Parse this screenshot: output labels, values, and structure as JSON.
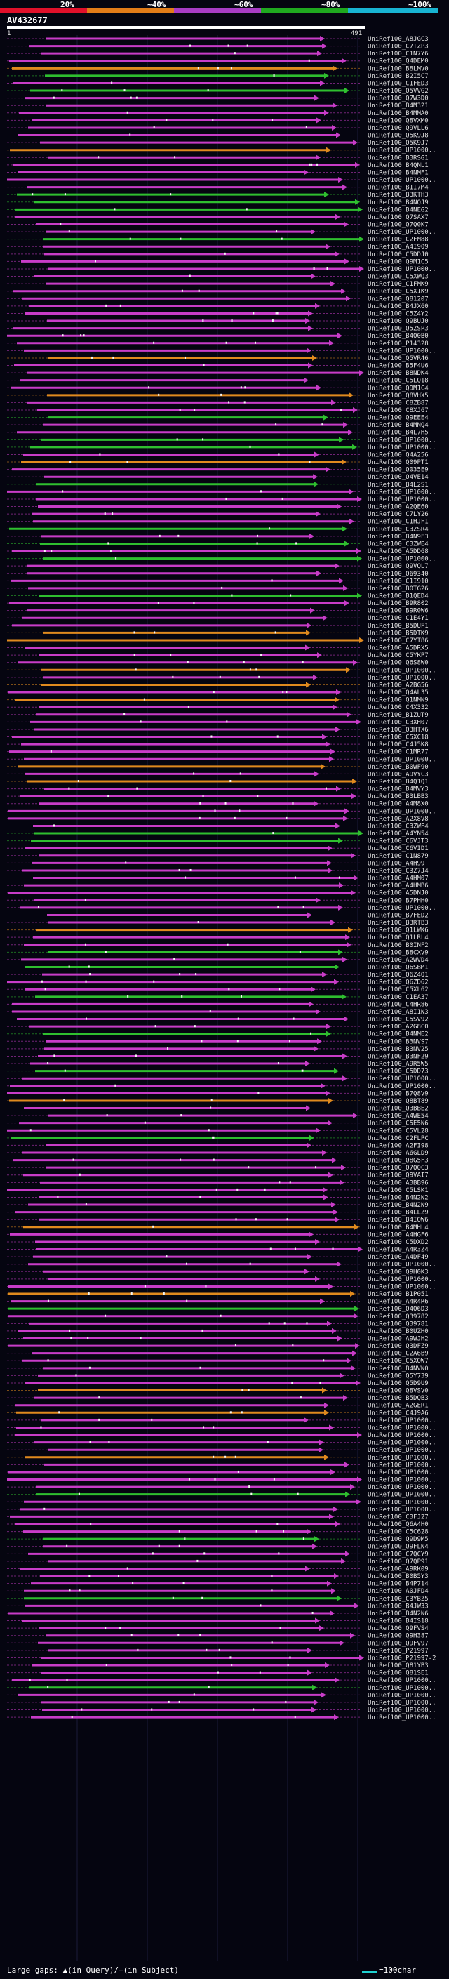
{
  "legend": [
    {
      "label": "20%",
      "color": "#e0102a"
    },
    {
      "label": "~40%",
      "color": "#e27c18"
    },
    {
      "label": "~60%",
      "color": "#a83cc4"
    },
    {
      "label": "~80%",
      "color": "#1fa81f"
    },
    {
      "label": "~100%",
      "color": "#18b4d2"
    }
  ],
  "query": {
    "name": "AV432677",
    "start": "1",
    "end": "491"
  },
  "colors": {
    "magenta": "#c83cc8",
    "green": "#2fbf2f",
    "orange": "#e08a1e",
    "tick": "#f5f5f5",
    "grid": "#1b1b3a"
  },
  "hits": [
    "UniRef100_A8JGC3",
    "UniRef100_C7TZP3",
    "UniRef100_C1N7Y6",
    "UniRef100_Q4DEM0",
    "UniRef100_B8LMV0",
    "UniRef100_B2I5C7",
    "UniRef100_C1FED3",
    "UniRef100_Q5VVG2",
    "UniRef100_Q7W3D0",
    "UniRef100_B4M321",
    "UniRef100_B4MMA0",
    "UniRef100_Q8VXM0",
    "UniRef100_Q9VLL6",
    "UniRef100_Q5K9J8",
    "UniRef100_Q5K9J7",
    "UniRef100_UP1000..",
    "UniRef100_B3RSG1",
    "UniRef100_B4QNL1",
    "UniRef100_B4NMF1",
    "UniRef100_UP1000..",
    "UniRef100_B1I7M4",
    "UniRef100_B3KTH3",
    "UniRef100_B4NQJ9",
    "UniRef100_B4NEG2",
    "UniRef100_Q7SAX7",
    "UniRef100_Q7Q0K7",
    "UniRef100_UP1000..",
    "UniRef100_C2FM88",
    "UniRef100_A4I909",
    "UniRef100_C5DDJ0",
    "UniRef100_Q9M1C5",
    "UniRef100_UP1000..",
    "UniRef100_C5XWQ3",
    "UniRef100_C1FMK9",
    "UniRef100_C5X1K9",
    "UniRef100_Q81207",
    "UniRef100_B4JX60",
    "UniRef100_C5Z4Y2",
    "UniRef100_Q9BUJ0",
    "UniRef100_Q5ZSP3",
    "UniRef100_B4Q0B0",
    "UniRef100_P14328",
    "UniRef100_UP1000..",
    "UniRef100_Q5VR46",
    "UniRef100_B5F4U6",
    "UniRef100_B8NDK4",
    "UniRef100_C5LQ18",
    "UniRef100_Q9M1C4",
    "UniRef100_Q8VHX5",
    "UniRef100_C8ZB87",
    "UniRef100_C8XJ67",
    "UniRef100_Q9EEE4",
    "UniRef100_B4MNQ4",
    "UniRef100_B4L7H5",
    "UniRef100_UP1000..",
    "UniRef100_UP1000..",
    "UniRef100_Q4A256",
    "UniRef100_Q09PT1",
    "UniRef100_Q035E9",
    "UniRef100_Q4VE14",
    "UniRef100_B4L2S1",
    "UniRef100_UP1000..",
    "UniRef100_UP1000..",
    "UniRef100_A2QE60",
    "UniRef100_C7LY26",
    "UniRef100_C1HJF1",
    "UniRef100_C3ZSR4",
    "UniRef100_B4N9F3",
    "UniRef100_C3ZWE4",
    "UniRef100_A5DD68",
    "UniRef100_UP1000..",
    "UniRef100_Q9VQL7",
    "UniRef100_Q69340",
    "UniRef100_C1I910",
    "UniRef100_B0TG26",
    "UniRef100_B1QED4",
    "UniRef100_B9R802",
    "UniRef100_B9R0W6",
    "UniRef100_C1E4Y1",
    "UniRef100_B5DUF1",
    "UniRef100_B5DTK9",
    "UniRef100_C7YT86",
    "UniRef100_A5DRX5",
    "UniRef100_C5YKP7",
    "UniRef100_Q6S8W0",
    "UniRef100_UP1000..",
    "UniRef100_UP1000..",
    "UniRef100_A2BG56",
    "UniRef100_Q4AL35",
    "UniRef100_Q1NMN9",
    "UniRef100_C4X332",
    "UniRef100_B1ZUT9",
    "UniRef100_C3XH07",
    "UniRef100_Q3HTX6",
    "UniRef100_C5XC18",
    "UniRef100_C4J5K8",
    "UniRef100_C1MR77",
    "UniRef100_UP1000..",
    "UniRef100_B0WF90",
    "UniRef100_A9VYC3",
    "UniRef100_B4Q1Q1",
    "UniRef100_B4MVY3",
    "UniRef100_B3LBB3",
    "UniRef100_A4M8X0",
    "UniRef100_UP1000..",
    "UniRef100_A2X8V8",
    "UniRef100_C3ZWF4",
    "UniRef100_A4YN54",
    "UniRef100_C6VJT3",
    "UniRef100_C6VID1",
    "UniRef100_C1N879",
    "UniRef100_A4H99",
    "UniRef100_C3Z7J4",
    "UniRef100_A4HM07",
    "UniRef100_A4HMB6",
    "UniRef100_A5DNJ0",
    "UniRef100_B7PHH0",
    "UniRef100_UP1000..",
    "UniRef100_B7FED2",
    "UniRef100_B3RTB3",
    "UniRef100_Q1LWK6",
    "UniRef100_Q1LRL4",
    "UniRef100_B0INF2",
    "UniRef100_B8CXV9",
    "UniRef100_A2WVD4",
    "UniRef100_Q6SBM1",
    "UniRef100_Q6Z4Q1",
    "UniRef100_Q6ZD62",
    "UniRef100_C5XL62",
    "UniRef100_C1EA37",
    "UniRef100_C4HR86",
    "UniRef100_A8I1N3",
    "UniRef100_C5SV92",
    "UniRef100_A2G8C0",
    "UniRef100_B4NME2",
    "UniRef100_B3NVS7",
    "UniRef100_B3NV25",
    "UniRef100_B3NF29",
    "UniRef100_A9R5W5",
    "UniRef100_C5DD73",
    "UniRef100_UP1000..",
    "UniRef100_UP1000..",
    "UniRef100_B7Q8V9",
    "UniRef100_Q8BT89",
    "UniRef100_Q3BBE2",
    "UniRef100_A4WE54",
    "UniRef100_C5E5N6",
    "UniRef100_C5VL28",
    "UniRef100_C2FLPC",
    "UniRef100_A2FI98",
    "UniRef100_A6GLD9",
    "UniRef100_Q8G5F3",
    "UniRef100_Q7Q0C3",
    "UniRef100_Q9VAI7",
    "UniRef100_A3BB96",
    "UniRef100_C5LSK1",
    "UniRef100_B4N2N2",
    "UniRef100_B4N2N9",
    "UniRef100_B4LLZ9",
    "UniRef100_B4IQW6",
    "UniRef100_B4MHL4",
    "UniRef100_A4HGF6",
    "UniRef100_C5DXD2",
    "UniRef100_A4R3Z4",
    "UniRef100_A4DF49",
    "UniRef100_UP1000..",
    "UniRef100_Q9H0K3",
    "UniRef100_UP1000..",
    "UniRef100_UP1000..",
    "UniRef100_B1P051",
    "UniRef100_A4R4R6",
    "UniRef100_Q4Q6D3",
    "UniRef100_Q39782",
    "UniRef100_Q39781",
    "UniRef100_B0UZH0",
    "UniRef100_A9WJH2",
    "UniRef100_Q3DFZ9",
    "UniRef100_C2A6B9",
    "UniRef100_C5XQW7",
    "UniRef100_B4NVN0",
    "UniRef100_Q5Y739",
    "UniRef100_Q5D9U9",
    "UniRef100_Q8VSV0",
    "UniRef100_B5DQB3",
    "UniRef100_A2GER1",
    "UniRef100_C4J9A6",
    "UniRef100_UP1000..",
    "UniRef100_UP1000..",
    "UniRef100_UP1000..",
    "UniRef100_UP1000..",
    "UniRef100_UP1000..",
    "UniRef100_UP1000..",
    "UniRef100_UP1000..",
    "UniRef100_UP1000..",
    "UniRef100_UP1000..",
    "UniRef100_UP1000..",
    "UniRef100_UP1000..",
    "UniRef100_UP1000..",
    "UniRef100_UP1000..",
    "UniRef100_C3FJ27",
    "UniRef100_Q6A4H0",
    "UniRef100_C5C628",
    "UniRef100_Q9D9M5",
    "UniRef100_Q9FLN4",
    "UniRef100_C7QCY9",
    "UniRef100_Q7QP91",
    "UniRef100_A9RK09",
    "UniRef100_B0B5Y3",
    "UniRef100_B4P714",
    "UniRef100_A0JFD4",
    "UniRef100_C3YBZ5",
    "UniRef100_B4JW33",
    "UniRef100_B4N2N6",
    "UniRef100_B4IS18",
    "UniRef100_Q9FVS4",
    "UniRef100_Q9H387",
    "UniRef100_Q9FV97",
    "UniRef100_P21997",
    "UniRef100_P21997-2",
    "UniRef100_Q81YB3",
    "UniRef100_Q81SE1",
    "UniRef100_UP1000..",
    "UniRef100_UP1000..",
    "UniRef100_UP1000..",
    "UniRef100_UP1000..",
    "UniRef100_UP1000..",
    "UniRef100_UP1000.."
  ],
  "footer": {
    "gaps_label": "Large gaps: ▲(in Query)/–(in Subject)",
    "scale_label": "=100char"
  }
}
